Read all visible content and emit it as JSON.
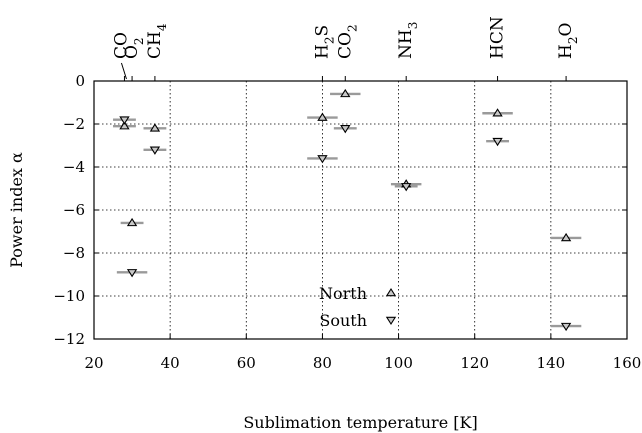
{
  "chart_data": {
    "type": "scatter",
    "xlabel": "Sublimation temperature [K]",
    "ylabel": "Power index α",
    "xlim": [
      20,
      160
    ],
    "ylim": [
      -12,
      0
    ],
    "x_ticks": [
      20,
      40,
      60,
      80,
      100,
      120,
      140,
      160
    ],
    "y_ticks": [
      0,
      -2,
      -4,
      -6,
      -8,
      -10,
      -12
    ],
    "x_tick_labels": [
      "20",
      "40",
      "60",
      "80",
      "100",
      "120",
      "140",
      "160"
    ],
    "y_tick_labels": [
      "0",
      "−2",
      "−4",
      "−6",
      "−8",
      "−10",
      "−12"
    ],
    "grid": true,
    "legend_position": "bottom-center",
    "top_axis_labels": [
      {
        "label": "CO",
        "main": "CO",
        "sub": "",
        "tail": "",
        "x": 28
      },
      {
        "label": "O2",
        "main": "O",
        "sub": "2",
        "tail": "",
        "x": 30
      },
      {
        "label": "CH4",
        "main": "CH",
        "sub": "4",
        "tail": "",
        "x": 36
      },
      {
        "label": "H2S",
        "main": "H",
        "sub": "2",
        "tail": "S",
        "x": 80
      },
      {
        "label": "CO2",
        "main": "CO",
        "sub": "2",
        "tail": "",
        "x": 86
      },
      {
        "label": "NH3",
        "main": "NH",
        "sub": "3",
        "tail": "",
        "x": 102
      },
      {
        "label": "HCN",
        "main": "HCN",
        "sub": "",
        "tail": "",
        "x": 126
      },
      {
        "label": "H2O",
        "main": "H",
        "sub": "2",
        "tail": "O",
        "x": 144
      }
    ],
    "series": [
      {
        "name": "North",
        "marker": "triangle-up",
        "points": [
          {
            "x": 28,
            "y": -2.1,
            "xerr": 3
          },
          {
            "x": 36,
            "y": -2.2,
            "xerr": 3
          },
          {
            "x": 30,
            "y": -6.6,
            "xerr": 3
          },
          {
            "x": 80,
            "y": -1.7,
            "xerr": 4
          },
          {
            "x": 86,
            "y": -0.6,
            "xerr": 4
          },
          {
            "x": 102,
            "y": -4.8,
            "xerr": 4
          },
          {
            "x": 126,
            "y": -1.5,
            "xerr": 4
          },
          {
            "x": 144,
            "y": -7.3,
            "xerr": 4
          }
        ]
      },
      {
        "name": "South",
        "marker": "triangle-down",
        "points": [
          {
            "x": 28,
            "y": -1.8,
            "xerr": 3
          },
          {
            "x": 36,
            "y": -3.2,
            "xerr": 3
          },
          {
            "x": 30,
            "y": -8.9,
            "xerr": 4
          },
          {
            "x": 80,
            "y": -3.6,
            "xerr": 4
          },
          {
            "x": 86,
            "y": -2.2,
            "xerr": 3
          },
          {
            "x": 102,
            "y": -4.9,
            "xerr": 3
          },
          {
            "x": 126,
            "y": -2.8,
            "xerr": 3
          },
          {
            "x": 144,
            "y": -11.4,
            "xerr": 4
          }
        ]
      }
    ],
    "legend": [
      "North",
      "South"
    ]
  }
}
